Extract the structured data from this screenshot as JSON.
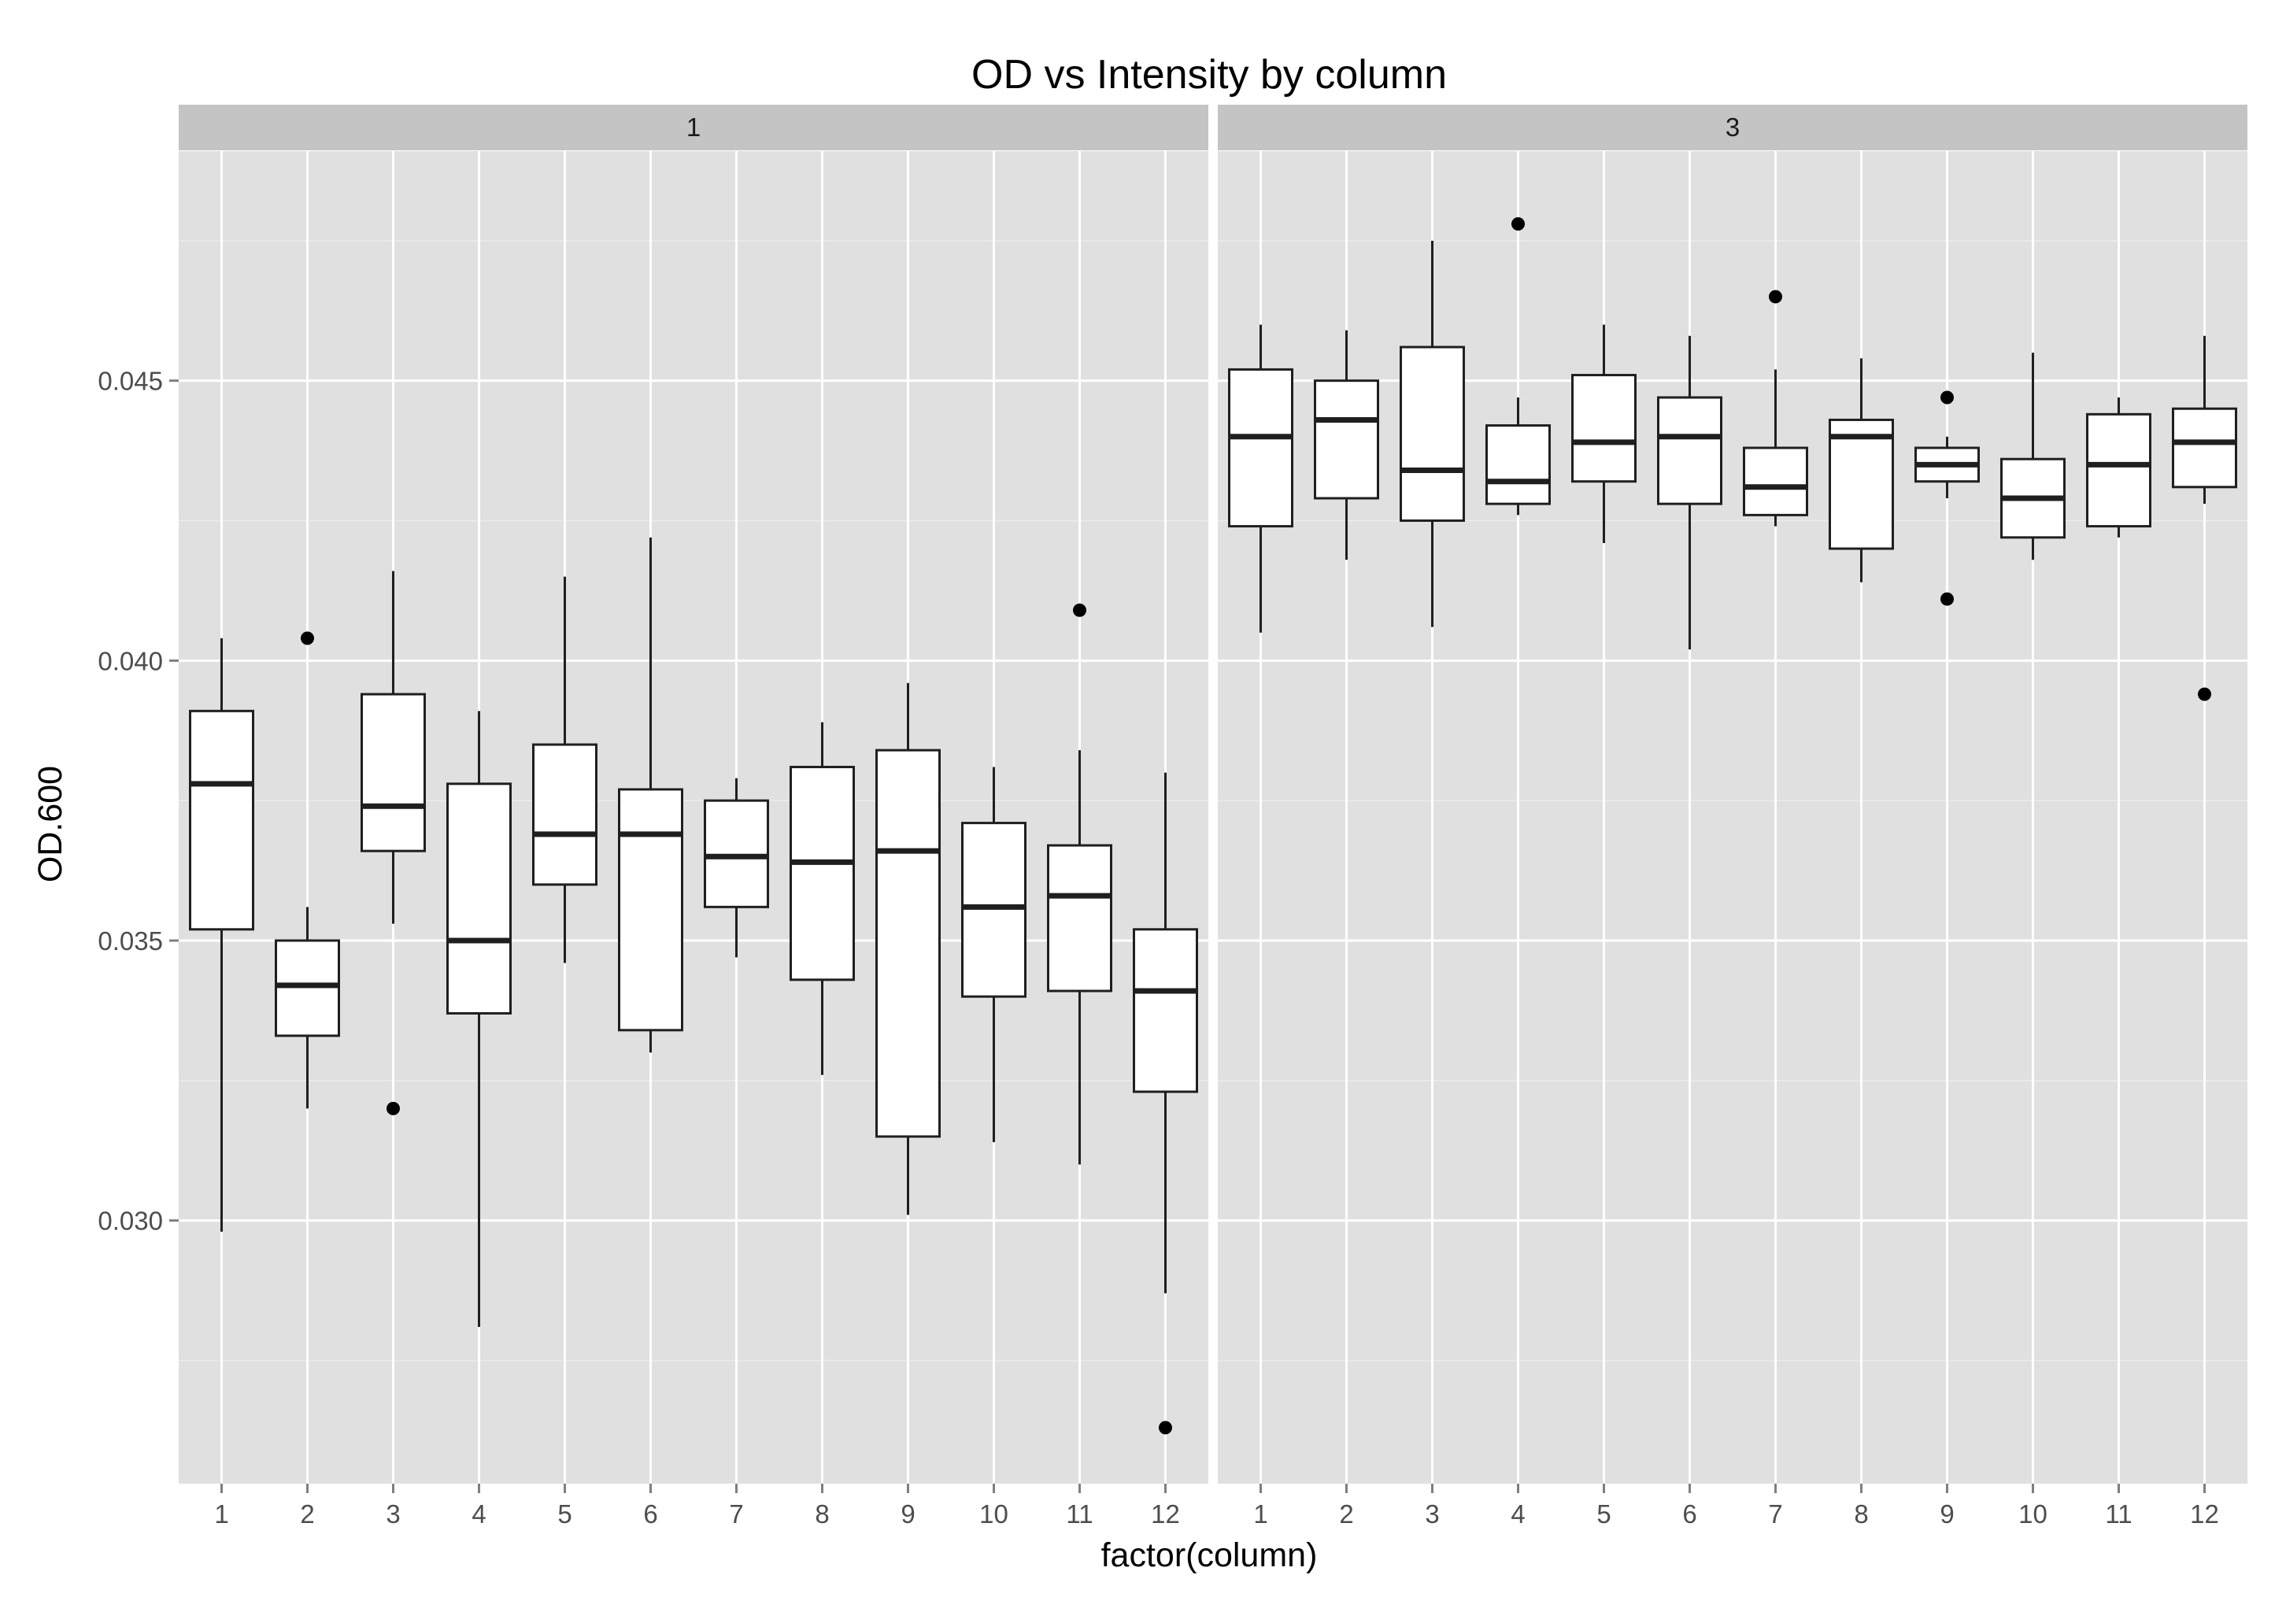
{
  "chart_data": {
    "type": "boxplot",
    "title": "OD vs Intensity by column",
    "xlabel": "factor(column)",
    "ylabel": "OD.600",
    "ylim": [
      0.0253,
      0.0491
    ],
    "yticks": [
      0.03,
      0.035,
      0.04,
      0.045
    ],
    "ytick_labels": [
      "0.030",
      "0.035",
      "0.040",
      "0.045"
    ],
    "grid": true,
    "categories": [
      "1",
      "2",
      "3",
      "4",
      "5",
      "6",
      "7",
      "8",
      "9",
      "10",
      "11",
      "12"
    ],
    "facets": [
      {
        "label": "1",
        "boxes": [
          {
            "x": "1",
            "q1": 0.0352,
            "median": 0.0378,
            "q3": 0.0391,
            "whisker_low": 0.0298,
            "whisker_high": 0.0404,
            "outliers": []
          },
          {
            "x": "2",
            "q1": 0.0333,
            "median": 0.0342,
            "q3": 0.035,
            "whisker_low": 0.032,
            "whisker_high": 0.0356,
            "outliers": [
              0.0404
            ]
          },
          {
            "x": "3",
            "q1": 0.0366,
            "median": 0.0374,
            "q3": 0.0394,
            "whisker_low": 0.0353,
            "whisker_high": 0.0416,
            "outliers": [
              0.032
            ]
          },
          {
            "x": "4",
            "q1": 0.0337,
            "median": 0.035,
            "q3": 0.0378,
            "whisker_low": 0.0281,
            "whisker_high": 0.0391,
            "outliers": []
          },
          {
            "x": "5",
            "q1": 0.036,
            "median": 0.0369,
            "q3": 0.0385,
            "whisker_low": 0.0346,
            "whisker_high": 0.0415,
            "outliers": []
          },
          {
            "x": "6",
            "q1": 0.0334,
            "median": 0.0369,
            "q3": 0.0377,
            "whisker_low": 0.033,
            "whisker_high": 0.0422,
            "outliers": []
          },
          {
            "x": "7",
            "q1": 0.0356,
            "median": 0.0365,
            "q3": 0.0375,
            "whisker_low": 0.0347,
            "whisker_high": 0.0379,
            "outliers": []
          },
          {
            "x": "8",
            "q1": 0.0343,
            "median": 0.0364,
            "q3": 0.0381,
            "whisker_low": 0.0326,
            "whisker_high": 0.0389,
            "outliers": []
          },
          {
            "x": "9",
            "q1": 0.0315,
            "median": 0.0366,
            "q3": 0.0384,
            "whisker_low": 0.0301,
            "whisker_high": 0.0396,
            "outliers": []
          },
          {
            "x": "10",
            "q1": 0.034,
            "median": 0.0356,
            "q3": 0.0371,
            "whisker_low": 0.0314,
            "whisker_high": 0.0381,
            "outliers": []
          },
          {
            "x": "11",
            "q1": 0.0341,
            "median": 0.0358,
            "q3": 0.0367,
            "whisker_low": 0.031,
            "whisker_high": 0.0384,
            "outliers": [
              0.0409
            ]
          },
          {
            "x": "12",
            "q1": 0.0323,
            "median": 0.0341,
            "q3": 0.0352,
            "whisker_low": 0.0287,
            "whisker_high": 0.038,
            "outliers": [
              0.0263
            ]
          }
        ]
      },
      {
        "label": "3",
        "boxes": [
          {
            "x": "1",
            "q1": 0.0424,
            "median": 0.044,
            "q3": 0.0452,
            "whisker_low": 0.0405,
            "whisker_high": 0.046,
            "outliers": []
          },
          {
            "x": "2",
            "q1": 0.0429,
            "median": 0.0443,
            "q3": 0.045,
            "whisker_low": 0.0418,
            "whisker_high": 0.0459,
            "outliers": []
          },
          {
            "x": "3",
            "q1": 0.0425,
            "median": 0.0434,
            "q3": 0.0456,
            "whisker_low": 0.0406,
            "whisker_high": 0.0475,
            "outliers": []
          },
          {
            "x": "4",
            "q1": 0.0428,
            "median": 0.0432,
            "q3": 0.0442,
            "whisker_low": 0.0426,
            "whisker_high": 0.0447,
            "outliers": [
              0.0478
            ]
          },
          {
            "x": "5",
            "q1": 0.0432,
            "median": 0.0439,
            "q3": 0.0451,
            "whisker_low": 0.0421,
            "whisker_high": 0.046,
            "outliers": []
          },
          {
            "x": "6",
            "q1": 0.0428,
            "median": 0.044,
            "q3": 0.0447,
            "whisker_low": 0.0402,
            "whisker_high": 0.0458,
            "outliers": []
          },
          {
            "x": "7",
            "q1": 0.0426,
            "median": 0.0431,
            "q3": 0.0438,
            "whisker_low": 0.0424,
            "whisker_high": 0.0452,
            "outliers": [
              0.0465
            ]
          },
          {
            "x": "8",
            "q1": 0.042,
            "median": 0.044,
            "q3": 0.0443,
            "whisker_low": 0.0414,
            "whisker_high": 0.0454,
            "outliers": []
          },
          {
            "x": "9",
            "q1": 0.0432,
            "median": 0.0435,
            "q3": 0.0438,
            "whisker_low": 0.0429,
            "whisker_high": 0.044,
            "outliers": [
              0.0447,
              0.0411
            ]
          },
          {
            "x": "10",
            "q1": 0.0422,
            "median": 0.0429,
            "q3": 0.0436,
            "whisker_low": 0.0418,
            "whisker_high": 0.0455,
            "outliers": []
          },
          {
            "x": "11",
            "q1": 0.0424,
            "median": 0.0435,
            "q3": 0.0444,
            "whisker_low": 0.0422,
            "whisker_high": 0.0447,
            "outliers": []
          },
          {
            "x": "12",
            "q1": 0.0431,
            "median": 0.0439,
            "q3": 0.0445,
            "whisker_low": 0.0428,
            "whisker_high": 0.0458,
            "outliers": [
              0.0394
            ]
          }
        ]
      }
    ],
    "colors": {
      "panel_background": "#e0e0e0",
      "strip_background": "#c4c4c4",
      "grid_major": "#ffffff",
      "grid_minor": "#ececec",
      "box_fill": "#ffffff",
      "box_stroke": "#1f1f1f",
      "tick_text": "#4d4d4d"
    }
  }
}
